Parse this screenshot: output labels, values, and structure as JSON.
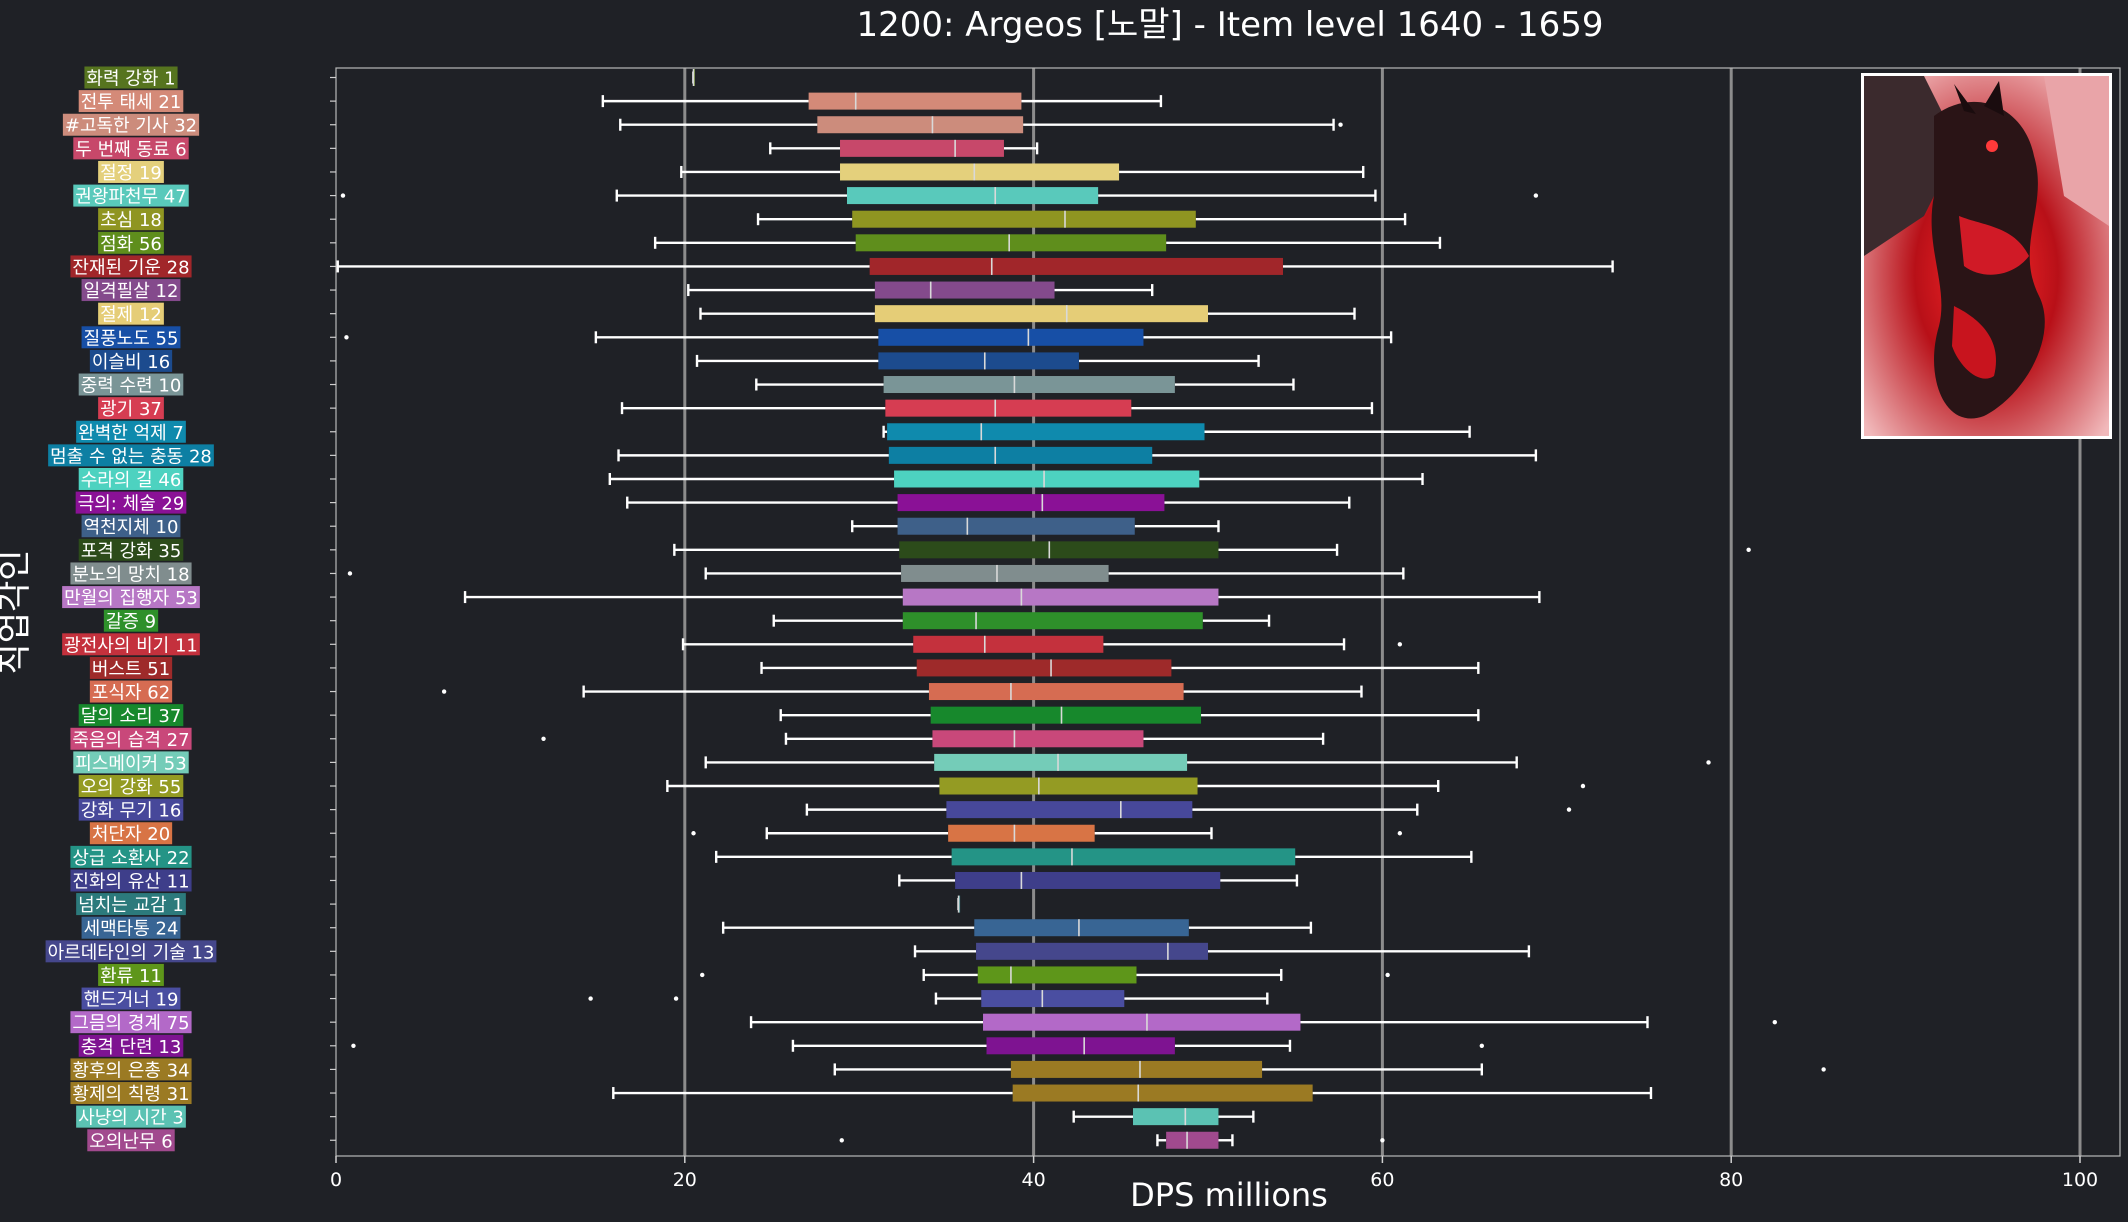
{
  "chart_data": {
    "type": "box",
    "title": "1200: Argeos [노말] - Item level 1640 - 1659",
    "xlabel": "DPS millions",
    "ylabel": "직업각인",
    "xlim": [
      0,
      101
    ],
    "xticks": [
      0,
      20,
      40,
      60,
      80,
      100
    ],
    "grid": "vertical",
    "background": "#1f2126",
    "categories": [
      {
        "label": "화력 강화 1",
        "color": "#56741f",
        "stats": [
          20.5,
          20.5,
          20.5,
          20.5,
          20.5
        ],
        "outliers": []
      },
      {
        "label": "전투 태세 21",
        "color": "#d48a78",
        "stats": [
          15.3,
          27.1,
          29.8,
          39.3,
          47.3
        ],
        "outliers": []
      },
      {
        "label": "#고독한 기사 32",
        "color": "#cc8c7c",
        "stats": [
          16.3,
          27.6,
          34.2,
          39.4,
          57.2
        ],
        "outliers": [
          57.6
        ]
      },
      {
        "label": "두 번째 동료 6",
        "color": "#c7486a",
        "stats": [
          24.9,
          28.9,
          35.5,
          38.3,
          40.2
        ],
        "outliers": []
      },
      {
        "label": "절정 19",
        "color": "#e4d07c",
        "stats": [
          19.8,
          28.9,
          36.6,
          44.9,
          58.9
        ],
        "outliers": []
      },
      {
        "label": "권왕파천무 47",
        "color": "#59c9bb",
        "stats": [
          16.1,
          29.3,
          37.8,
          43.7,
          59.6
        ],
        "outliers": [
          0.4,
          68.8
        ]
      },
      {
        "label": "초심 18",
        "color": "#8f9521",
        "stats": [
          24.2,
          29.6,
          41.8,
          49.3,
          61.3
        ],
        "outliers": []
      },
      {
        "label": "점화 56",
        "color": "#5f8e1c",
        "stats": [
          18.3,
          29.8,
          38.6,
          47.6,
          63.3
        ],
        "outliers": []
      },
      {
        "label": "잔재된 기운 28",
        "color": "#a1262a",
        "stats": [
          0.1,
          30.6,
          37.6,
          54.3,
          73.2
        ],
        "outliers": []
      },
      {
        "label": "일격필살 12",
        "color": "#844a8c",
        "stats": [
          20.2,
          30.9,
          34.1,
          41.2,
          46.8
        ],
        "outliers": []
      },
      {
        "label": "절제 12",
        "color": "#e5cd77",
        "stats": [
          20.9,
          30.9,
          41.9,
          50.0,
          58.4
        ],
        "outliers": []
      },
      {
        "label": "질풍노도 55",
        "color": "#174fa6",
        "stats": [
          14.9,
          31.1,
          39.7,
          46.3,
          60.5
        ],
        "outliers": [
          0.6
        ]
      },
      {
        "label": "이슬비 16",
        "color": "#1c4b8e",
        "stats": [
          20.7,
          31.1,
          37.2,
          42.6,
          52.9
        ],
        "outliers": []
      },
      {
        "label": "중력 수련 10",
        "color": "#7a9597",
        "stats": [
          24.1,
          31.4,
          38.9,
          48.1,
          54.9
        ],
        "outliers": []
      },
      {
        "label": "광기 37",
        "color": "#d63d52",
        "stats": [
          16.4,
          31.5,
          37.8,
          45.6,
          59.4
        ],
        "outliers": []
      },
      {
        "label": "완벽한 억제 7",
        "color": "#0f8aad",
        "stats": [
          31.4,
          31.6,
          37.0,
          49.8,
          65.0
        ],
        "outliers": []
      },
      {
        "label": "멈출 수 없는 충동 28",
        "color": "#0d7fa3",
        "stats": [
          16.2,
          31.7,
          37.8,
          46.8,
          68.8
        ],
        "outliers": []
      },
      {
        "label": "수라의 길 46",
        "color": "#4dd2c0",
        "stats": [
          15.7,
          32.0,
          40.6,
          49.5,
          62.3
        ],
        "outliers": []
      },
      {
        "label": "극의: 체술 29",
        "color": "#8a1196",
        "stats": [
          16.7,
          32.2,
          40.5,
          47.5,
          58.1
        ],
        "outliers": []
      },
      {
        "label": "역천지체 10",
        "color": "#3e6089",
        "stats": [
          29.6,
          32.2,
          36.2,
          45.8,
          50.6
        ],
        "outliers": []
      },
      {
        "label": "포격 강화 35",
        "color": "#2c4b1a",
        "stats": [
          19.4,
          32.3,
          40.9,
          50.6,
          57.4
        ],
        "outliers": [
          81.0
        ]
      },
      {
        "label": "분노의 망치 18",
        "color": "#808d8e",
        "stats": [
          21.2,
          32.4,
          37.9,
          44.3,
          61.2
        ],
        "outliers": [
          0.8
        ]
      },
      {
        "label": "만월의 집행자 53",
        "color": "#b777c5",
        "stats": [
          7.4,
          32.5,
          39.3,
          50.6,
          69.0
        ],
        "outliers": []
      },
      {
        "label": "갈증 9",
        "color": "#2e902a",
        "stats": [
          25.1,
          32.5,
          36.7,
          49.7,
          53.5
        ],
        "outliers": []
      },
      {
        "label": "광전사의 비기 11",
        "color": "#c4313d",
        "stats": [
          19.9,
          33.1,
          37.2,
          44.0,
          57.8
        ],
        "outliers": [
          61.0
        ]
      },
      {
        "label": "버스트 51",
        "color": "#9e2a2a",
        "stats": [
          24.4,
          33.3,
          41.0,
          47.9,
          65.5
        ],
        "outliers": []
      },
      {
        "label": "포식자 62",
        "color": "#d66c52",
        "stats": [
          14.2,
          34.0,
          38.7,
          48.6,
          58.8
        ],
        "outliers": [
          6.2
        ]
      },
      {
        "label": "달의 소리 37",
        "color": "#17882c",
        "stats": [
          25.5,
          34.1,
          41.6,
          49.6,
          65.5
        ],
        "outliers": []
      },
      {
        "label": "죽음의 습격 27",
        "color": "#c9487a",
        "stats": [
          25.8,
          34.2,
          38.9,
          46.3,
          56.6
        ],
        "outliers": [
          11.9
        ]
      },
      {
        "label": "피스메이커 53",
        "color": "#74ccb8",
        "stats": [
          21.2,
          34.3,
          41.4,
          48.8,
          67.7
        ],
        "outliers": [
          78.7
        ]
      },
      {
        "label": "오의 강화 55",
        "color": "#949b23",
        "stats": [
          19.0,
          34.6,
          40.3,
          49.4,
          63.2
        ],
        "outliers": [
          71.5
        ]
      },
      {
        "label": "강화 무기 16",
        "color": "#47489a",
        "stats": [
          27.0,
          35.0,
          45.0,
          49.1,
          62.0
        ],
        "outliers": [
          70.7
        ]
      },
      {
        "label": "처단자 20",
        "color": "#d87445",
        "stats": [
          24.7,
          35.1,
          38.9,
          43.5,
          50.2
        ],
        "outliers": [
          20.5,
          61.0
        ]
      },
      {
        "label": "상급 소환사 22",
        "color": "#249486",
        "stats": [
          21.8,
          35.3,
          42.2,
          55.0,
          65.1
        ],
        "outliers": []
      },
      {
        "label": "진화의 유산 11",
        "color": "#3e3e8a",
        "stats": [
          32.3,
          35.5,
          39.3,
          50.7,
          55.1
        ],
        "outliers": []
      },
      {
        "label": "넘치는 교감 1",
        "color": "#2c7a7c",
        "stats": [
          35.7,
          35.7,
          35.7,
          35.7,
          35.7
        ],
        "outliers": []
      },
      {
        "label": "세맥타통 24",
        "color": "#386594",
        "stats": [
          22.2,
          36.6,
          42.6,
          48.9,
          55.9
        ],
        "outliers": []
      },
      {
        "label": "아르데타인의 기술 13",
        "color": "#45478c",
        "stats": [
          33.2,
          36.7,
          47.7,
          50.0,
          68.4
        ],
        "outliers": []
      },
      {
        "label": "환류 11",
        "color": "#5e961a",
        "stats": [
          33.7,
          36.8,
          38.7,
          45.9,
          54.2
        ],
        "outliers": [
          21.0,
          60.3
        ]
      },
      {
        "label": "핸드거너 19",
        "color": "#4a4ea1",
        "stats": [
          34.4,
          37.0,
          40.5,
          45.2,
          53.4
        ],
        "outliers": [
          14.6,
          19.5
        ]
      },
      {
        "label": "그믐의 경계 75",
        "color": "#b369c8",
        "stats": [
          23.8,
          37.1,
          46.5,
          55.3,
          75.2
        ],
        "outliers": [
          82.5
        ]
      },
      {
        "label": "충격 단련 13",
        "color": "#7e1391",
        "stats": [
          26.2,
          37.3,
          42.9,
          48.1,
          54.7
        ],
        "outliers": [
          1.0,
          65.7
        ]
      },
      {
        "label": "황후의 은총 34",
        "color": "#9b7a23",
        "stats": [
          28.6,
          38.7,
          46.1,
          53.1,
          65.7
        ],
        "outliers": [
          85.3
        ]
      },
      {
        "label": "황제의 칙령 31",
        "color": "#9b7a23",
        "stats": [
          15.9,
          38.8,
          46.0,
          56.0,
          75.4
        ],
        "outliers": []
      },
      {
        "label": "사냥의 시간 3",
        "color": "#5bc2b3",
        "stats": [
          42.3,
          45.7,
          48.7,
          50.6,
          52.6
        ],
        "outliers": []
      },
      {
        "label": "오의난무 6",
        "color": "#a14a8e",
        "stats": [
          47.1,
          47.6,
          48.8,
          50.6,
          51.4
        ],
        "outliers": [
          29.0,
          60.0
        ]
      }
    ]
  }
}
